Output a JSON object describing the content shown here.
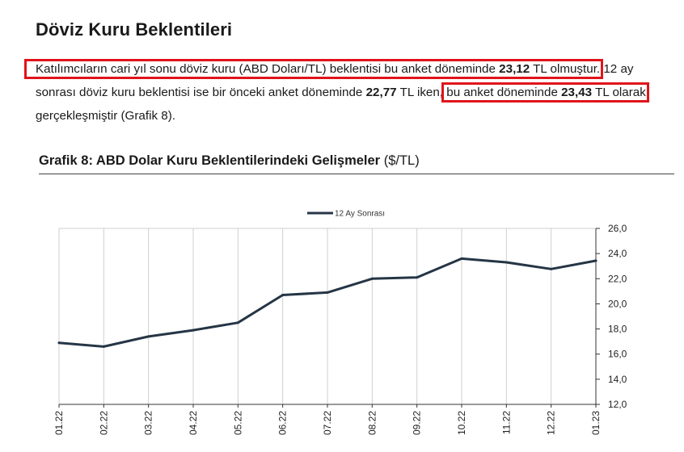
{
  "page": {
    "heading": "Döviz Kuru Beklentileri",
    "paragraph": {
      "s1_hl_start": "Katılımcıların cari yıl sonu döviz kuru (ABD Doları/TL) beklentisi bu anket döneminde ",
      "s1_value": "23,12",
      "s1_hl_end": " TL olmuştur.",
      "s2_start": " 12 ay sonrası döviz kuru beklentisi ise bir önceki anket döneminde ",
      "s2_value": "22,77",
      "s2_mid": " TL iken, ",
      "s2_hl_start": "bu anket döneminde ",
      "s2_hl_value": "23,43",
      "s2_hl_end": " TL olarak",
      "s2_end": " gerçekleşmiştir (Grafik 8)."
    },
    "figure_title": "Grafik 8: ABD Dolar Kuru Beklentilerindeki Gelişmeler",
    "figure_unit": "($/TL)",
    "highlight_color": "#e0141a"
  },
  "chart_data": {
    "type": "line",
    "categories": [
      "01.22",
      "02.22",
      "03.22",
      "04.22",
      "05.22",
      "06.22",
      "07.22",
      "08.22",
      "09.22",
      "10.22",
      "11.22",
      "12.22",
      "01.23"
    ],
    "series": [
      {
        "name": "12 Ay Sonrası",
        "values": [
          16.9,
          16.6,
          17.4,
          17.9,
          18.5,
          20.7,
          20.9,
          22.0,
          22.1,
          23.6,
          23.3,
          22.77,
          23.43
        ],
        "color": "#253545"
      }
    ],
    "ylim": [
      12,
      26
    ],
    "yticks": [
      "12,0",
      "14,0",
      "16,0",
      "18,0",
      "20,0",
      "22,0",
      "24,0",
      "26,0"
    ],
    "y_axis_side": "right",
    "grid": "vertical",
    "legend": "top-center"
  }
}
